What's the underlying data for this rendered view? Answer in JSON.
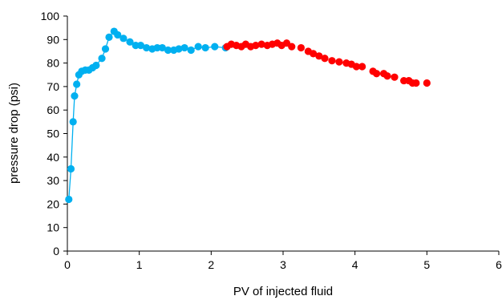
{
  "chart_data": {
    "type": "scatter",
    "xlabel": "PV of injected fluid",
    "ylabel": "pressure drop (psi)",
    "xlim": [
      0,
      6
    ],
    "ylim": [
      0,
      100
    ],
    "xticks": [
      0,
      1,
      2,
      3,
      4,
      5,
      6
    ],
    "yticks": [
      0,
      10,
      20,
      30,
      40,
      50,
      60,
      70,
      80,
      90,
      100
    ],
    "grid": false,
    "legend": "none",
    "series": [
      {
        "color": "#00b0f0",
        "connected": true,
        "x": [
          0.02,
          0.05,
          0.08,
          0.1,
          0.13,
          0.16,
          0.2,
          0.25,
          0.3,
          0.35,
          0.4,
          0.48,
          0.53,
          0.58,
          0.65,
          0.7,
          0.78,
          0.87,
          0.95,
          1.02,
          1.1,
          1.18,
          1.25,
          1.32,
          1.4,
          1.48,
          1.55,
          1.63,
          1.72,
          1.82,
          1.92,
          2.05,
          2.2
        ],
        "y": [
          22,
          35,
          55,
          66,
          71,
          75,
          76.5,
          77,
          77,
          78,
          79,
          82,
          86,
          91,
          93.5,
          92,
          90.5,
          89,
          87.5,
          87.5,
          86.5,
          86,
          86.5,
          86.5,
          85.5,
          85.5,
          86,
          86.5,
          85.5,
          87,
          86.5,
          87,
          86.5
        ]
      },
      {
        "color": "#ff0000",
        "connected": false,
        "x": [
          2.22,
          2.28,
          2.35,
          2.42,
          2.48,
          2.55,
          2.62,
          2.7,
          2.78,
          2.85,
          2.92,
          2.98,
          3.05,
          3.12,
          3.25,
          3.35,
          3.42,
          3.5,
          3.58,
          3.68,
          3.78,
          3.88,
          3.95,
          4.02,
          4.1,
          4.25,
          4.3,
          4.4,
          4.45,
          4.55,
          4.68,
          4.75,
          4.8,
          4.85,
          5.0
        ],
        "y": [
          87,
          88,
          87.5,
          87,
          88,
          87,
          87.5,
          88,
          87.5,
          88,
          88.5,
          87.5,
          88.5,
          87,
          86.5,
          85,
          84,
          83,
          82,
          81,
          80.5,
          80,
          79.5,
          78.5,
          78.5,
          76.5,
          75.5,
          75.5,
          74.5,
          74,
          72.5,
          72.5,
          71.5,
          71.5,
          71.5
        ]
      }
    ]
  }
}
